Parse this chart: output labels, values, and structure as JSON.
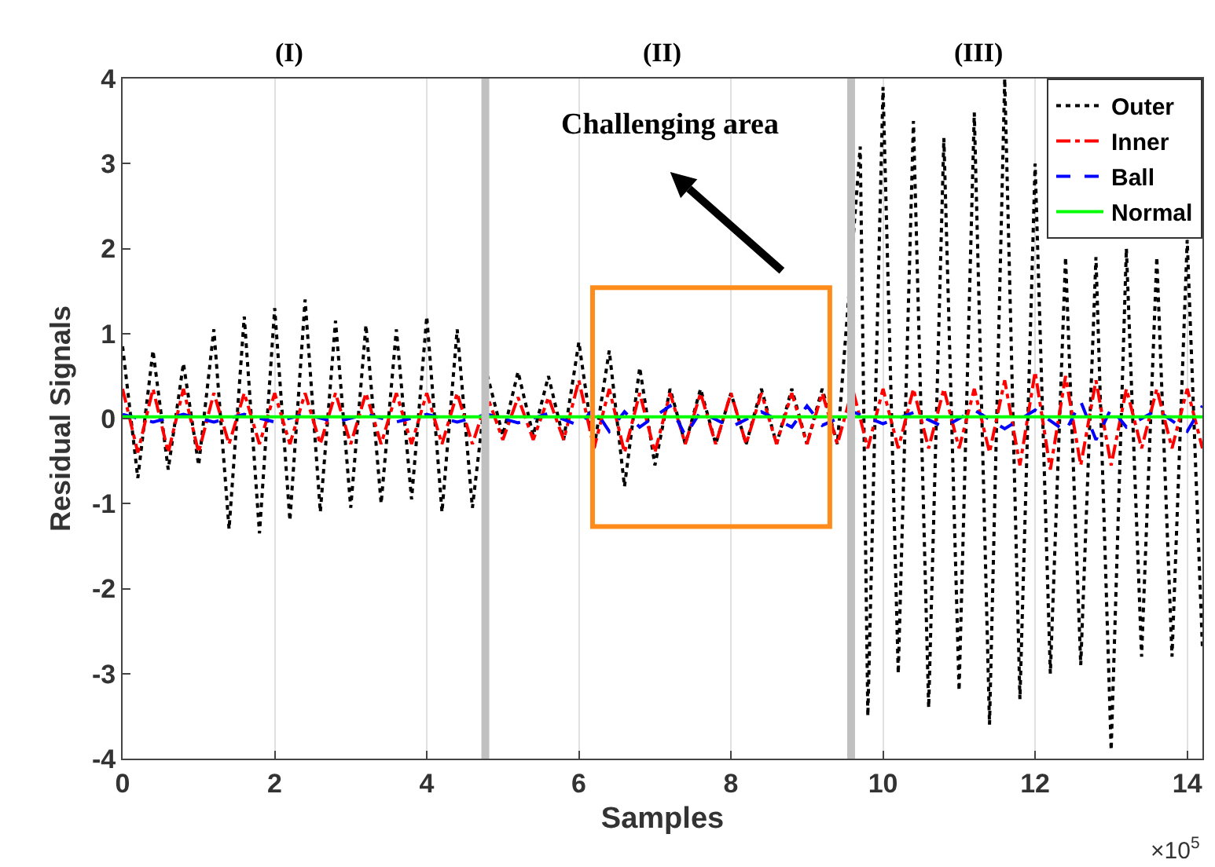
{
  "chart_data": {
    "type": "line",
    "xlabel": "Samples",
    "ylabel": "Residual Signals",
    "xlim": [
      0,
      14.2
    ],
    "xticks": [
      0,
      2,
      4,
      6,
      8,
      10,
      12,
      14
    ],
    "ylim": [
      -4,
      4
    ],
    "yticks": [
      -4,
      -3,
      -2,
      -1,
      0,
      1,
      2,
      3,
      4
    ],
    "grid": "x",
    "legend": "top right",
    "marker": "none",
    "ref_lines": [
      {
        "axis": "x",
        "value": 4.77,
        "color": "#c0c0c0"
      },
      {
        "axis": "x",
        "value": 9.58,
        "color": "#c0c0c0"
      }
    ],
    "annotations": [
      "(I)",
      "(II)",
      "(III)",
      "Challenging area",
      "×10$^{5}$"
    ],
    "series": [
      {
        "name": "Outer",
        "color": "#000000",
        "line_style": "dotted",
        "x": [
          0,
          0.2,
          0.4,
          0.6,
          0.8,
          1.0,
          1.2,
          1.4,
          1.6,
          1.8,
          2.0,
          2.2,
          2.4,
          2.6,
          2.8,
          3.0,
          3.2,
          3.4,
          3.6,
          3.8,
          4.0,
          4.2,
          4.4,
          4.6,
          4.8,
          5.0,
          5.2,
          5.4,
          5.6,
          5.8,
          6.0,
          6.2,
          6.4,
          6.6,
          6.8,
          7.0,
          7.2,
          7.4,
          7.6,
          7.8,
          8.0,
          8.2,
          8.4,
          8.6,
          8.8,
          9.0,
          9.2,
          9.4,
          9.7,
          9.8,
          10.0,
          10.2,
          10.4,
          10.6,
          10.8,
          11.0,
          11.2,
          11.4,
          11.6,
          11.8,
          12.0,
          12.2,
          12.4,
          12.6,
          12.8,
          13.0,
          13.2,
          13.4,
          13.6,
          13.8,
          14.0,
          14.2
        ],
        "values": [
          0.85,
          -0.7,
          0.8,
          -0.6,
          0.65,
          -0.55,
          1.05,
          -1.3,
          1.2,
          -1.35,
          1.3,
          -1.2,
          1.4,
          -1.1,
          1.15,
          -1.05,
          1.1,
          -1.0,
          1.05,
          -0.95,
          1.2,
          -1.1,
          1.05,
          -1.05,
          0.5,
          -0.2,
          0.55,
          -0.2,
          0.5,
          -0.25,
          0.9,
          -0.35,
          0.8,
          -0.8,
          0.6,
          -0.55,
          0.35,
          -0.3,
          0.35,
          -0.3,
          0.3,
          -0.3,
          0.35,
          -0.3,
          0.35,
          -0.3,
          0.35,
          -0.3,
          3.2,
          -3.5,
          3.9,
          -3.0,
          3.5,
          -3.4,
          3.3,
          -3.2,
          3.6,
          -3.6,
          4.0,
          -3.3,
          3.0,
          -3.0,
          1.9,
          -2.9,
          1.9,
          -3.9,
          2.0,
          -2.8,
          1.9,
          -2.8,
          2.1,
          -2.7
        ]
      },
      {
        "name": "Inner",
        "color": "#ff0000",
        "line_style": "dashdot",
        "x": [
          0,
          0.2,
          0.4,
          0.6,
          0.8,
          1.0,
          1.2,
          1.4,
          1.6,
          1.8,
          2.0,
          2.2,
          2.4,
          2.6,
          2.8,
          3.0,
          3.2,
          3.4,
          3.6,
          3.8,
          4.0,
          4.2,
          4.4,
          4.6,
          4.8,
          5.0,
          5.2,
          5.4,
          5.6,
          5.8,
          6.0,
          6.2,
          6.4,
          6.6,
          6.8,
          7.0,
          7.2,
          7.4,
          7.6,
          7.8,
          8.0,
          8.2,
          8.4,
          8.6,
          8.8,
          9.0,
          9.2,
          9.4,
          9.6,
          9.8,
          10.0,
          10.2,
          10.4,
          10.6,
          10.8,
          11.0,
          11.2,
          11.4,
          11.6,
          11.8,
          12.0,
          12.2,
          12.4,
          12.6,
          12.8,
          13.0,
          13.2,
          13.4,
          13.6,
          13.8,
          14.0,
          14.2
        ],
        "values": [
          0.35,
          -0.4,
          0.35,
          -0.4,
          0.35,
          -0.4,
          0.3,
          -0.3,
          0.3,
          -0.3,
          0.3,
          -0.3,
          0.3,
          -0.3,
          0.3,
          -0.3,
          0.3,
          -0.3,
          0.3,
          -0.3,
          0.3,
          -0.3,
          0.3,
          -0.3,
          0.25,
          -0.25,
          0.25,
          -0.25,
          0.25,
          -0.25,
          0.45,
          -0.35,
          0.35,
          -0.4,
          0.3,
          -0.4,
          0.3,
          -0.3,
          0.3,
          -0.3,
          0.3,
          -0.3,
          0.3,
          -0.3,
          0.3,
          -0.3,
          0.3,
          -0.3,
          0.35,
          -0.35,
          0.35,
          -0.35,
          0.35,
          -0.35,
          0.35,
          -0.35,
          0.35,
          -0.4,
          0.45,
          -0.55,
          0.55,
          -0.6,
          0.5,
          -0.55,
          0.45,
          -0.55,
          0.35,
          -0.35,
          0.35,
          -0.35,
          0.35,
          -0.35
        ]
      },
      {
        "name": "Ball",
        "color": "#0000ff",
        "line_style": "dashed",
        "x": [
          0,
          0.4,
          0.8,
          1.2,
          1.6,
          2.0,
          2.4,
          2.8,
          3.2,
          3.6,
          4.0,
          4.4,
          4.8,
          5.2,
          5.6,
          6.0,
          6.2,
          6.4,
          6.6,
          6.8,
          7.2,
          7.4,
          7.6,
          8.0,
          8.4,
          8.8,
          9.0,
          9.2,
          9.6,
          10.0,
          10.4,
          10.8,
          11.2,
          11.6,
          12.0,
          12.4,
          12.6,
          12.8,
          13.0,
          13.2,
          13.6,
          14.0,
          14.2
        ],
        "values": [
          0.05,
          -0.04,
          0.05,
          -0.04,
          0.05,
          -0.04,
          0.05,
          -0.04,
          0.05,
          -0.04,
          0.05,
          -0.04,
          0.05,
          -0.05,
          0.06,
          -0.08,
          0.12,
          -0.15,
          0.08,
          -0.1,
          0.15,
          -0.2,
          0.08,
          -0.1,
          0.08,
          -0.1,
          0.15,
          -0.08,
          0.08,
          -0.06,
          0.07,
          -0.1,
          0.1,
          -0.12,
          0.1,
          -0.15,
          0.2,
          -0.25,
          0.12,
          -0.1,
          0.1,
          -0.15,
          0.15
        ]
      },
      {
        "name": "Normal",
        "color": "#00ff00",
        "line_style": "solid",
        "x": [
          0,
          14.2
        ],
        "values": [
          0.02,
          0.02
        ]
      }
    ]
  }
}
